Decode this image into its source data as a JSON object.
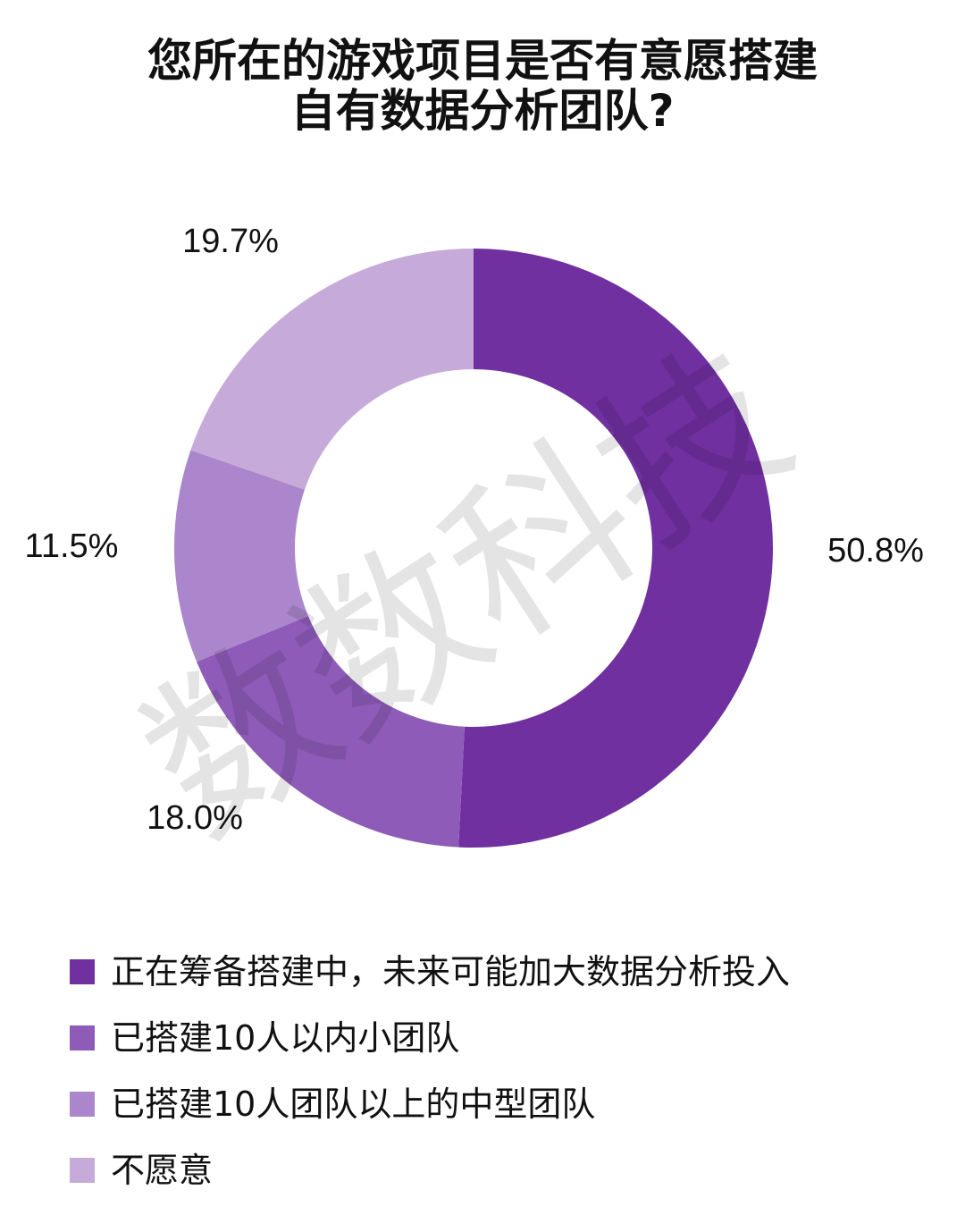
{
  "title": {
    "line1": "您所在的游戏项目是否有意愿搭建",
    "line2": "自有数据分析团队?"
  },
  "watermark": "数数科技",
  "chart_data": {
    "type": "pie",
    "donut": true,
    "title": "您所在的游戏项目是否有意愿搭建自有数据分析团队?",
    "categories": [
      "正在筹备搭建中，未来可能加大数据分析投入",
      "已搭建10人以内小团队",
      "已搭建10人团队以上的中型团队",
      "不愿意"
    ],
    "values": [
      50.8,
      18.0,
      11.5,
      19.7
    ],
    "value_labels": [
      "50.8%",
      "18.0%",
      "11.5%",
      "19.7%"
    ],
    "colors": [
      "#7030a0",
      "#8e5bb8",
      "#ab86cc",
      "#c6aad9"
    ],
    "legend_position": "bottom"
  }
}
